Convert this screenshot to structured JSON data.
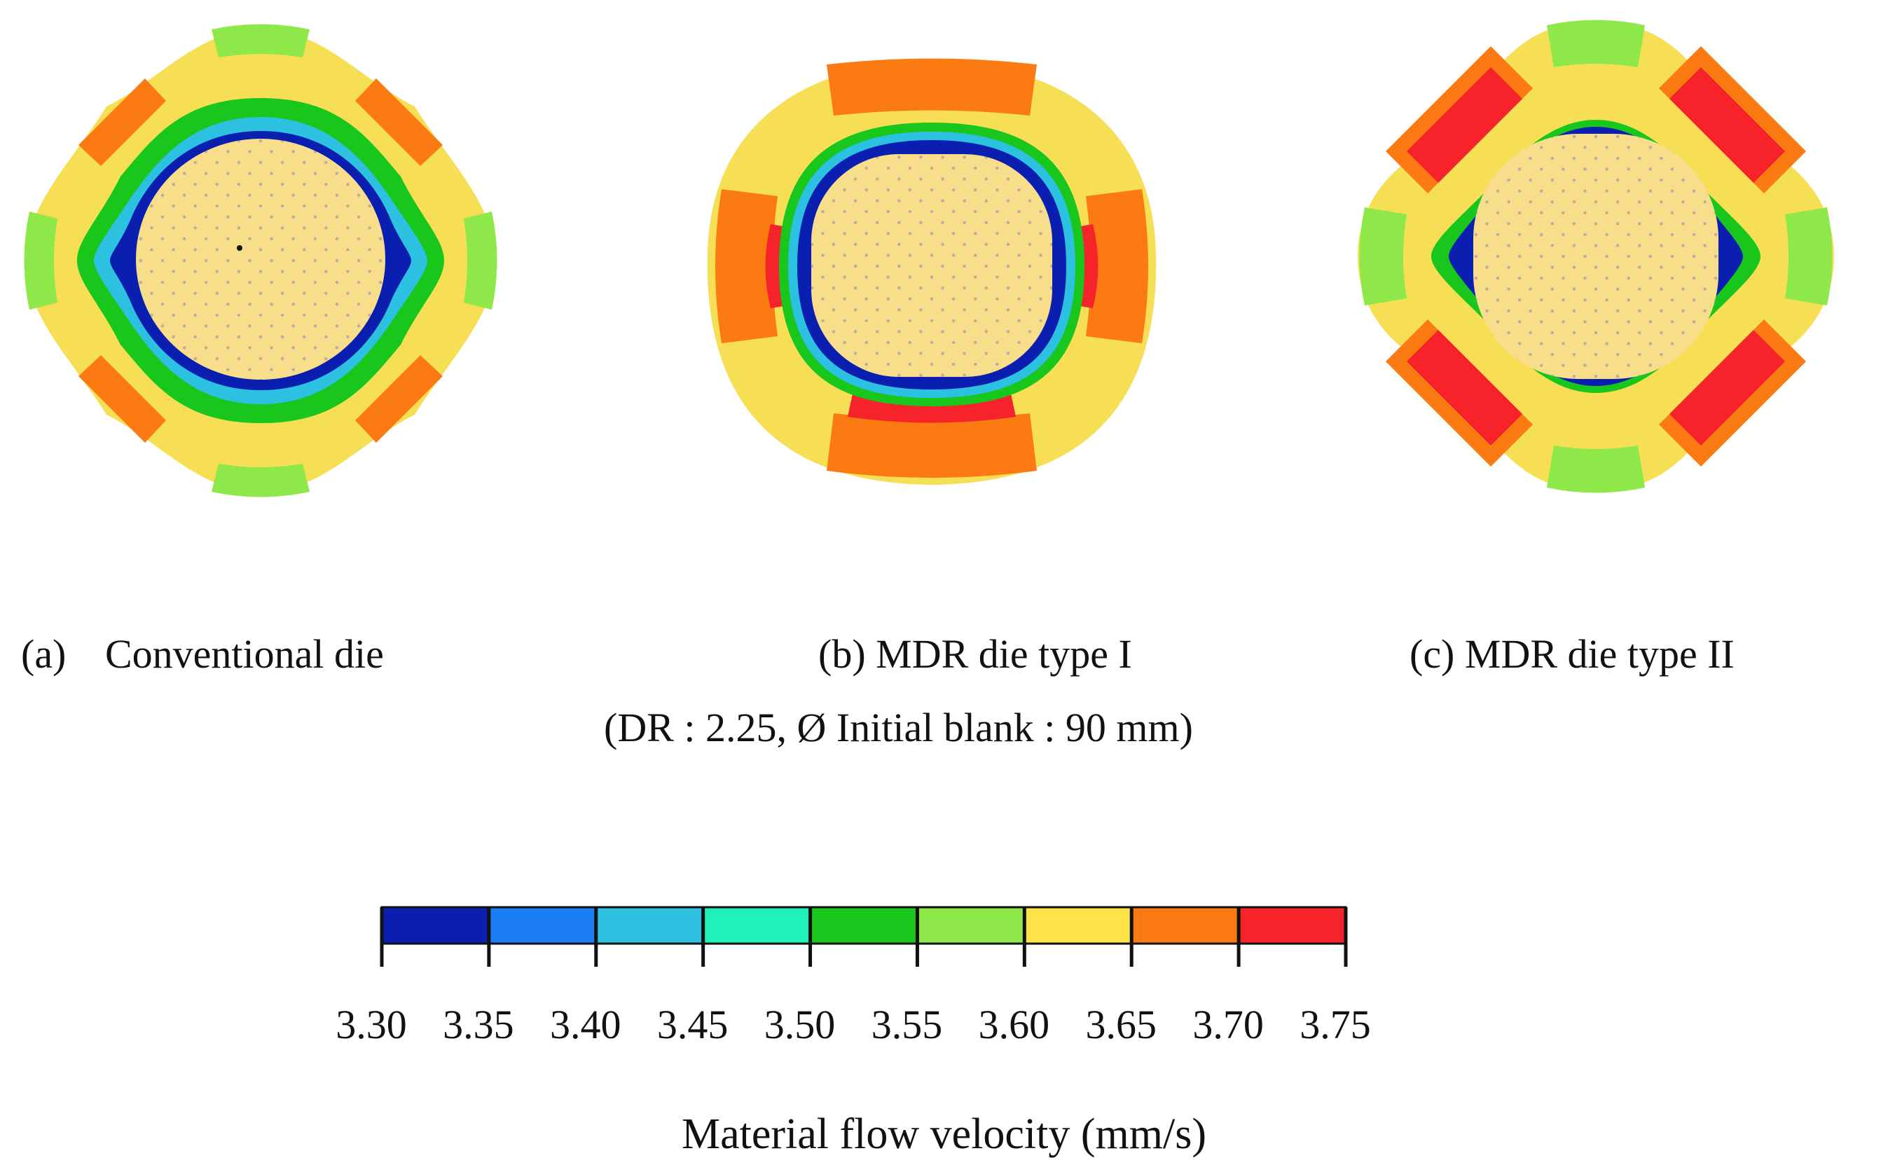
{
  "panels": [
    {
      "id": "a",
      "mark": "(a)",
      "label": "Conventional die",
      "shape": "four-lobe-diagonal"
    },
    {
      "id": "b",
      "mark": "(b)",
      "label": "MDR die type I",
      "shape": "rounded-square"
    },
    {
      "id": "c",
      "mark": "(c)",
      "label": "MDR die type II",
      "shape": "four-lobe-clover"
    }
  ],
  "conditions": "(DR : 2.25, Ø Initial blank : 90 mm)",
  "colorbar": {
    "title": "Material flow velocity (mm/s)",
    "ticks": [
      "3.30",
      "3.35",
      "3.40",
      "3.45",
      "3.50",
      "3.55",
      "3.60",
      "3.65",
      "3.70",
      "3.75"
    ],
    "colors": [
      "#0a1fb0",
      "#1a7df2",
      "#2cc1e0",
      "#21f0bb",
      "#18c61c",
      "#8fe84a",
      "#fde24a",
      "#fb7b12",
      "#f7232a"
    ],
    "center_color": "#f8dd8b"
  }
}
